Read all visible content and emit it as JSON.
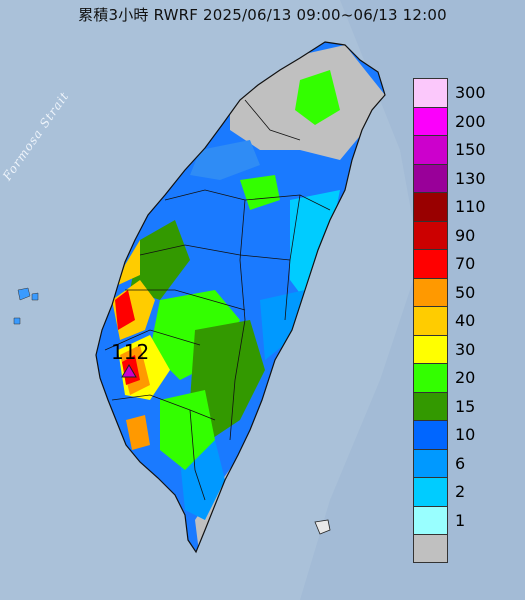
{
  "title": "累積3小時 RWRF 2025/06/13 09:00~06/13 12:00",
  "map": {
    "sea_label": "Formosa Strait",
    "peak": {
      "value": "112",
      "marker": "triangle-marker",
      "color": "#cc00cc"
    }
  },
  "legend": {
    "items": [
      {
        "label": "300",
        "color": "#fbc8fb"
      },
      {
        "label": "200",
        "color": "#fb00fb"
      },
      {
        "label": "150",
        "color": "#cc00cc"
      },
      {
        "label": "130",
        "color": "#990099"
      },
      {
        "label": "110",
        "color": "#990000"
      },
      {
        "label": "90",
        "color": "#cc0000"
      },
      {
        "label": "70",
        "color": "#ff0000"
      },
      {
        "label": "50",
        "color": "#ff9900"
      },
      {
        "label": "40",
        "color": "#ffcc00"
      },
      {
        "label": "30",
        "color": "#ffff00"
      },
      {
        "label": "20",
        "color": "#33ff00"
      },
      {
        "label": "15",
        "color": "#339900"
      },
      {
        "label": "10",
        "color": "#0066ff"
      },
      {
        "label": "6",
        "color": "#0099ff"
      },
      {
        "label": "2",
        "color": "#00ccff"
      },
      {
        "label": "1",
        "color": "#99ffff"
      },
      {
        "label": "",
        "color": "#c0c0c0"
      }
    ]
  }
}
